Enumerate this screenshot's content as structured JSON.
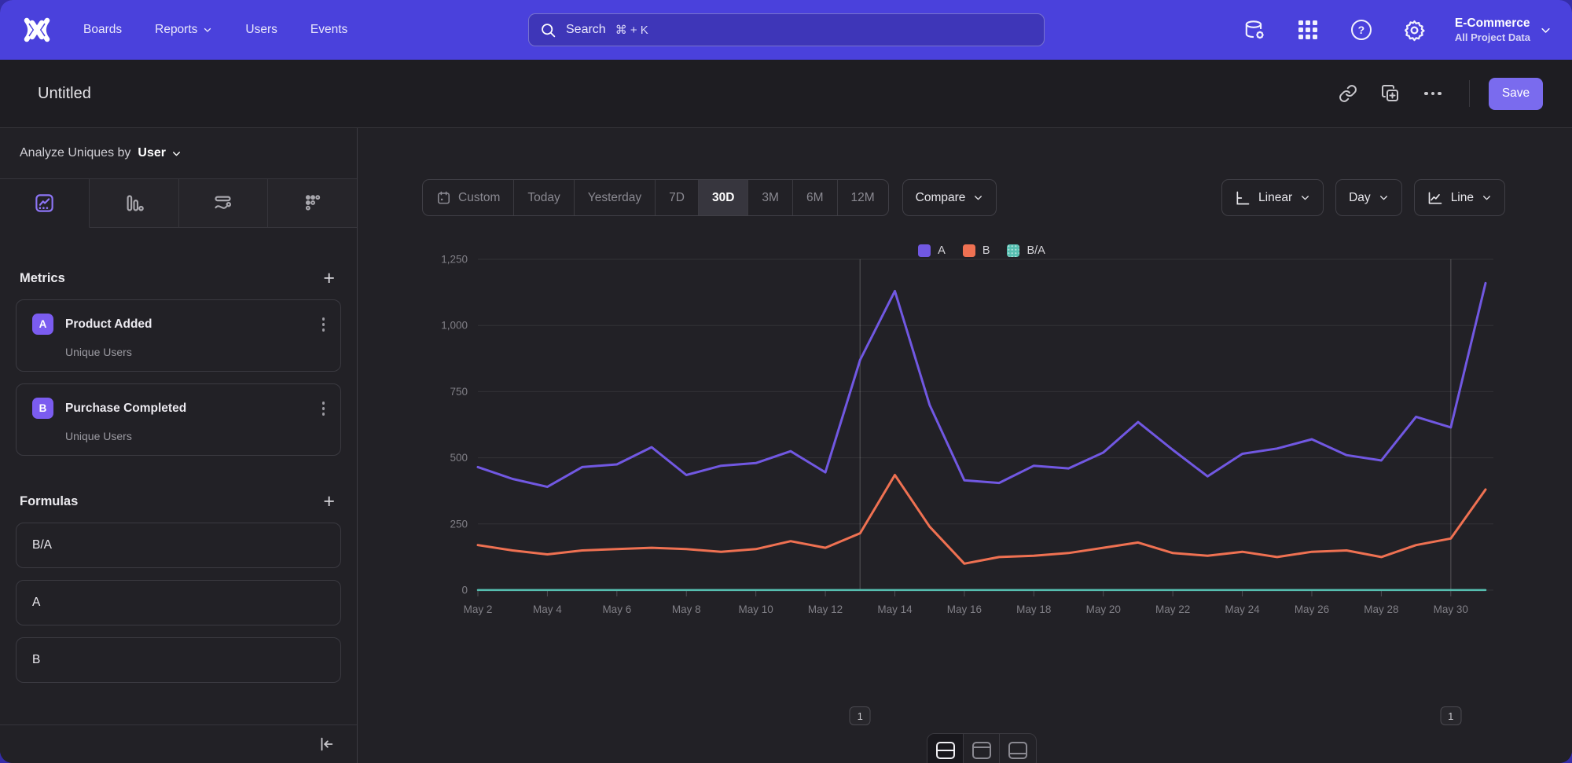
{
  "nav": {
    "items": [
      {
        "label": "Boards",
        "chevron": false
      },
      {
        "label": "Reports",
        "chevron": true
      },
      {
        "label": "Users",
        "chevron": false
      },
      {
        "label": "Events",
        "chevron": false
      }
    ],
    "search": {
      "placeholder": "Search",
      "shortcut": "⌘ + K"
    },
    "icons": [
      "data-management-icon",
      "apps-grid-icon",
      "help-icon",
      "settings-gear-icon"
    ],
    "project": {
      "name": "E-Commerce",
      "scope": "All Project Data"
    }
  },
  "header": {
    "title": "Untitled",
    "save_label": "Save",
    "icons": [
      "share-link-icon",
      "duplicate-icon",
      "more-options-icon"
    ]
  },
  "sidebar": {
    "analyze": {
      "prefix": "Analyze Uniques by",
      "selector": "User"
    },
    "tabs": [
      "insights-line-chart",
      "bar-chart",
      "flow",
      "retention-dots"
    ],
    "active_tab_index": 0,
    "plus_icon": "+",
    "metrics": {
      "title": "Metrics",
      "items": [
        {
          "letter": "A",
          "name": "Product Added",
          "subtitle": "Unique Users"
        },
        {
          "letter": "B",
          "name": "Purchase Completed",
          "subtitle": "Unique Users"
        }
      ]
    },
    "formulas": {
      "title": "Formulas",
      "items": [
        "B/A",
        "A",
        "B"
      ]
    }
  },
  "controls": {
    "date_ranges": [
      "Custom",
      "Today",
      "Yesterday",
      "7D",
      "30D",
      "3M",
      "6M",
      "12M"
    ],
    "selected_range": "30D",
    "compare_label": "Compare",
    "scale_label": "Linear",
    "granularity_label": "Day",
    "chart_type_label": "Line"
  },
  "chart_data": {
    "type": "line",
    "title": "",
    "x": [
      "May 2",
      "May 3",
      "May 4",
      "May 5",
      "May 6",
      "May 7",
      "May 8",
      "May 9",
      "May 10",
      "May 11",
      "May 12",
      "May 13",
      "May 14",
      "May 15",
      "May 16",
      "May 17",
      "May 18",
      "May 19",
      "May 20",
      "May 21",
      "May 22",
      "May 23",
      "May 24",
      "May 25",
      "May 26",
      "May 27",
      "May 28",
      "May 29",
      "May 30",
      "May 31"
    ],
    "xtick_every": 2,
    "ylim": [
      0,
      1250
    ],
    "yticks": [
      0,
      250,
      500,
      750,
      1000,
      1250
    ],
    "ytick_labels": [
      "0",
      "250",
      "500",
      "750",
      "1,000",
      "1,250"
    ],
    "legend_position": "top-center",
    "grid": true,
    "series": [
      {
        "name": "A",
        "color": "#7158e2",
        "values": [
          465,
          420,
          390,
          465,
          475,
          540,
          435,
          470,
          480,
          525,
          445,
          870,
          1130,
          700,
          415,
          405,
          470,
          460,
          520,
          635,
          530,
          430,
          515,
          535,
          570,
          510,
          490,
          655,
          615,
          1160
        ]
      },
      {
        "name": "B",
        "color": "#ef7152",
        "values": [
          170,
          150,
          135,
          150,
          155,
          160,
          155,
          145,
          155,
          185,
          160,
          215,
          435,
          240,
          100,
          125,
          130,
          140,
          160,
          180,
          140,
          130,
          145,
          125,
          145,
          150,
          125,
          170,
          195,
          380
        ]
      },
      {
        "name": "B/A",
        "color": "#56beb0",
        "pattern": true,
        "values": [
          0.37,
          0.36,
          0.35,
          0.32,
          0.33,
          0.3,
          0.36,
          0.31,
          0.32,
          0.35,
          0.36,
          0.25,
          0.38,
          0.34,
          0.24,
          0.31,
          0.28,
          0.3,
          0.31,
          0.28,
          0.26,
          0.3,
          0.28,
          0.23,
          0.25,
          0.29,
          0.26,
          0.26,
          0.32,
          0.33
        ]
      }
    ],
    "annotations": [
      {
        "x_index": 11,
        "label": "1"
      },
      {
        "x_index": 28,
        "label": "1"
      }
    ]
  },
  "colors": {
    "nav": "#4a41dc",
    "accent": "#7b5cf0",
    "save_button": "#7a6bee",
    "series_a": "#7158e2",
    "series_b": "#ef7152",
    "series_ba": "#56beb0"
  }
}
